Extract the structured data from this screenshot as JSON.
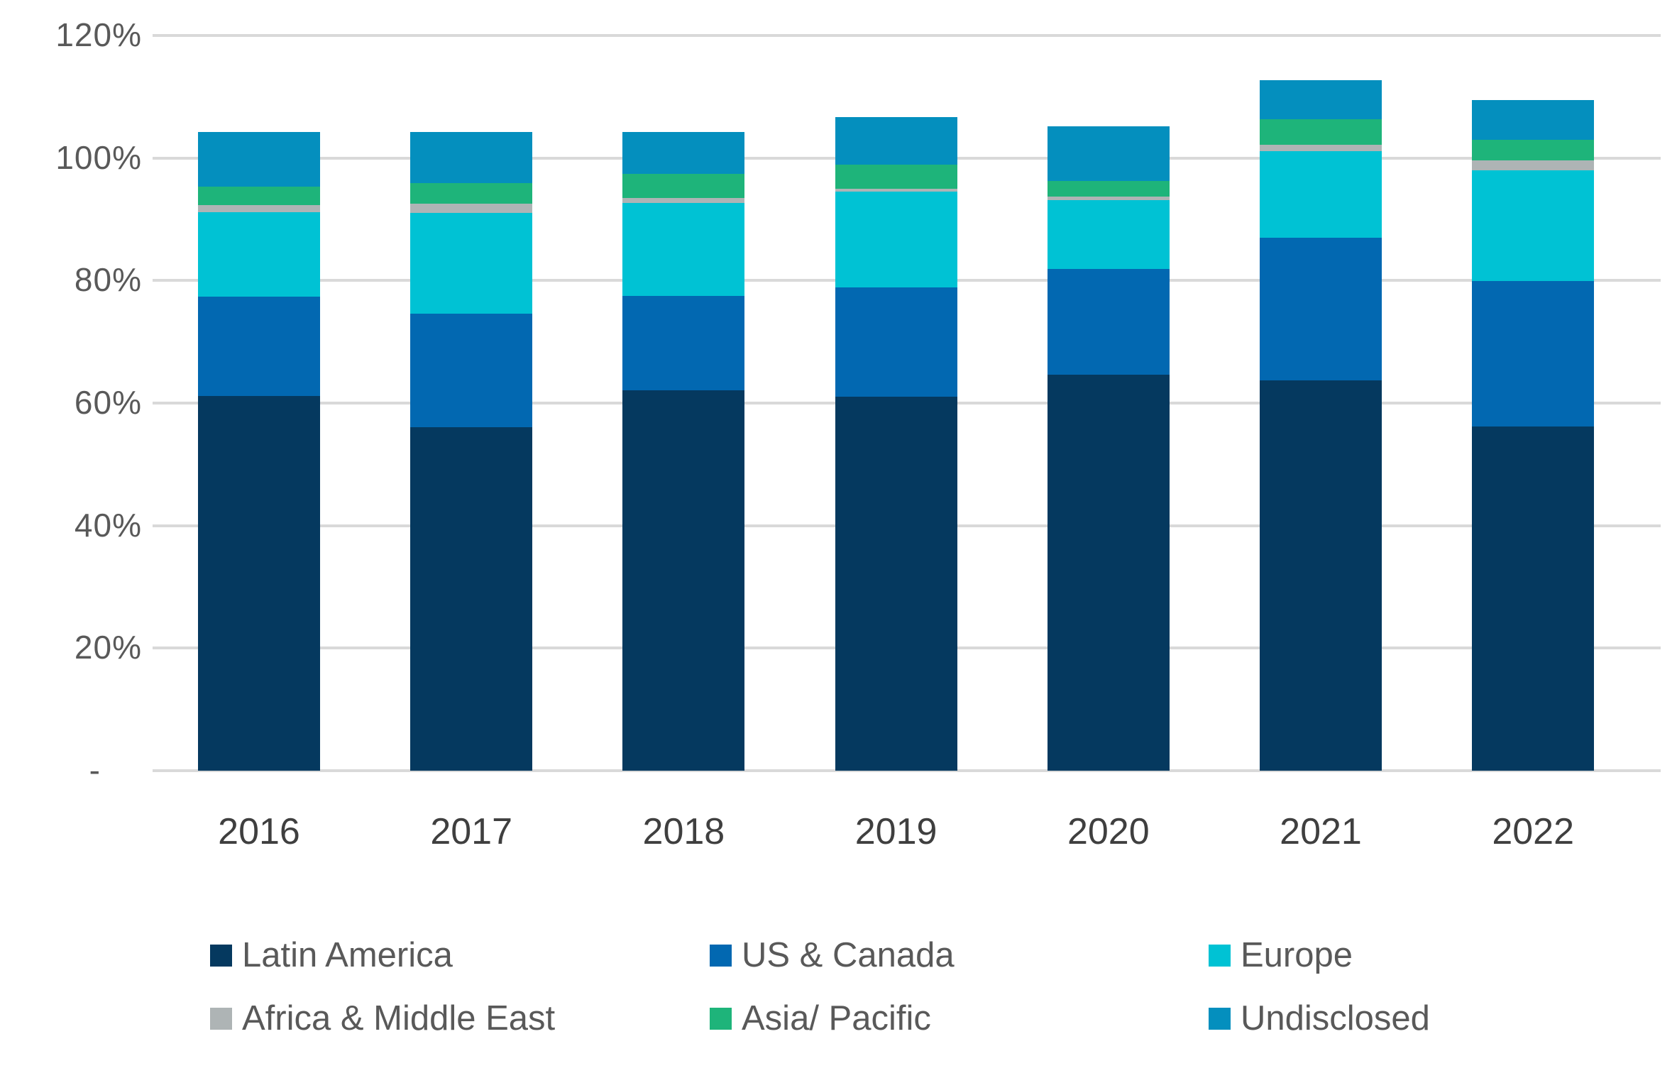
{
  "chart_data": {
    "type": "bar",
    "stacked": true,
    "title": "",
    "xlabel": "",
    "ylabel": "",
    "categories": [
      "2016",
      "2017",
      "2018",
      "2019",
      "2020",
      "2021",
      "2022"
    ],
    "series": [
      {
        "name": "Latin America",
        "color": "#05395F",
        "values": [
          61.2,
          56.1,
          62.1,
          61.1,
          64.6,
          63.7,
          56.2
        ]
      },
      {
        "name": "US & Canada",
        "color": "#0268B1",
        "values": [
          16.2,
          18.5,
          15.4,
          17.8,
          17.3,
          23.3,
          23.7
        ]
      },
      {
        "name": "Europe",
        "color": "#00C2D4",
        "values": [
          13.8,
          16.5,
          15.2,
          15.6,
          11.2,
          14.1,
          18.1
        ]
      },
      {
        "name": "Africa & Middle East",
        "color": "#AEB4B5",
        "values": [
          1.1,
          1.4,
          0.8,
          0.5,
          0.6,
          1.1,
          1.6
        ]
      },
      {
        "name": "Asia/ Pacific",
        "color": "#1EB47A",
        "values": [
          3.0,
          3.4,
          3.9,
          3.9,
          2.6,
          4.1,
          3.4
        ]
      },
      {
        "name": "Undisclosed",
        "color": "#048FBE",
        "values": [
          8.9,
          8.4,
          6.8,
          7.8,
          8.9,
          6.4,
          6.5
        ]
      }
    ],
    "totals_pct": [
      104.2,
      104.3,
      104.2,
      106.7,
      105.2,
      112.7,
      109.5
    ],
    "y_axis": {
      "min": 0,
      "max": 120,
      "step": 20,
      "tick_labels_top_down": [
        "120%",
        "100%",
        "80%",
        "60%",
        "40%",
        "20%",
        "-"
      ]
    },
    "grid": true,
    "legend_position": "bottom",
    "legend_rows": [
      [
        "Latin America",
        "US & Canada",
        "Europe"
      ],
      [
        "Africa & Middle East",
        "Asia/ Pacific",
        "Undisclosed"
      ]
    ]
  },
  "style": {
    "gridline_color": "#D9D9D9",
    "axis_text_color": "#595959",
    "year_text_color": "#3F3F3F",
    "background": "#FFFFFF"
  }
}
